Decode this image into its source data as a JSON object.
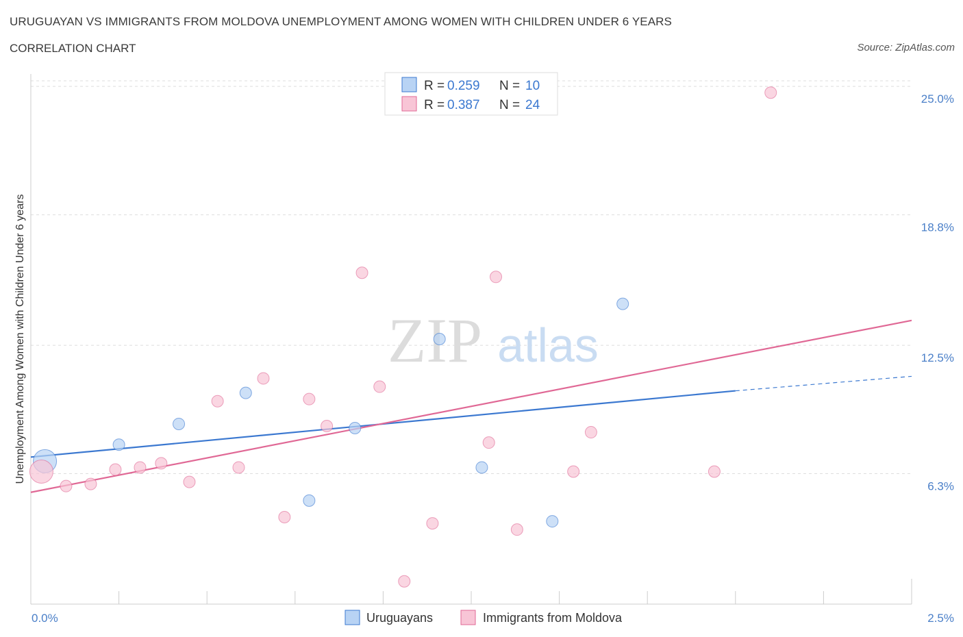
{
  "header": {
    "title": "URUGUAYAN VS IMMIGRANTS FROM MOLDOVA UNEMPLOYMENT AMONG WOMEN WITH CHILDREN UNDER 6 YEARS",
    "subtitle": "CORRELATION CHART",
    "source": "Source: ZipAtlas.com"
  },
  "watermark": {
    "zip": "ZIP",
    "atlas": "atlas"
  },
  "colors": {
    "blue": "#3b78d0",
    "blue_fill": "#b8d3f4",
    "pink": "#e06895",
    "pink_fill": "#f8c5d6",
    "grid": "#dddddd",
    "tick_label": "#4a7fc8"
  },
  "legend": {
    "rows": [
      {
        "r_label": "R = ",
        "r_value": "0.259",
        "n_label": "N = ",
        "n_value": "10",
        "series": "blue"
      },
      {
        "r_label": "R = ",
        "r_value": "0.387",
        "n_label": "N = ",
        "n_value": "24",
        "series": "pink"
      }
    ]
  },
  "chart_data": {
    "type": "scatter",
    "title": "URUGUAYAN VS IMMIGRANTS FROM MOLDOVA UNEMPLOYMENT AMONG WOMEN WITH CHILDREN UNDER 6 YEARS",
    "subtitle": "CORRELATION CHART",
    "xlabel": "",
    "ylabel": "Unemployment Among Women with Children Under 6 years",
    "xlim": [
      0,
      2.5
    ],
    "ylim": [
      0,
      25.6
    ],
    "x_tick_labels": [
      {
        "value": 0,
        "label": "0.0%"
      },
      {
        "value": 2.5,
        "label": "2.5%"
      }
    ],
    "y_tick_labels": [
      {
        "value": 6.3,
        "label": "6.3%"
      },
      {
        "value": 12.5,
        "label": "12.5%"
      },
      {
        "value": 18.8,
        "label": "18.8%"
      },
      {
        "value": 25.0,
        "label": "25.0%"
      }
    ],
    "grid": true,
    "legend_position": "top-center",
    "series": [
      {
        "name": "Uruguayans",
        "color": "#3b78d0",
        "r": 0.259,
        "n": 10,
        "points": [
          {
            "x": 0.04,
            "y": 6.9,
            "size": "large"
          },
          {
            "x": 0.25,
            "y": 7.7
          },
          {
            "x": 0.42,
            "y": 8.7
          },
          {
            "x": 0.61,
            "y": 10.2
          },
          {
            "x": 0.79,
            "y": 5.0
          },
          {
            "x": 0.92,
            "y": 8.5
          },
          {
            "x": 1.16,
            "y": 12.8
          },
          {
            "x": 1.28,
            "y": 6.6
          },
          {
            "x": 1.48,
            "y": 4.0
          },
          {
            "x": 1.68,
            "y": 14.5
          }
        ],
        "trend": {
          "x0": 0.0,
          "y0": 7.1,
          "x1": 2.0,
          "y1": 10.3,
          "dashed_to_x": 2.5,
          "dashed_to_y": 11.0
        }
      },
      {
        "name": "Immigrants from Moldova",
        "color": "#e06895",
        "r": 0.387,
        "n": 24,
        "points": [
          {
            "x": 0.03,
            "y": 6.4,
            "size": "large"
          },
          {
            "x": 0.1,
            "y": 5.7
          },
          {
            "x": 0.17,
            "y": 5.8
          },
          {
            "x": 0.24,
            "y": 6.5
          },
          {
            "x": 0.31,
            "y": 6.6
          },
          {
            "x": 0.37,
            "y": 6.8
          },
          {
            "x": 0.45,
            "y": 5.9
          },
          {
            "x": 0.53,
            "y": 9.8
          },
          {
            "x": 0.59,
            "y": 6.6
          },
          {
            "x": 0.66,
            "y": 10.9
          },
          {
            "x": 0.72,
            "y": 4.2
          },
          {
            "x": 0.79,
            "y": 9.9
          },
          {
            "x": 0.84,
            "y": 8.6
          },
          {
            "x": 0.94,
            "y": 16.0
          },
          {
            "x": 0.99,
            "y": 10.5
          },
          {
            "x": 1.06,
            "y": 1.1
          },
          {
            "x": 1.14,
            "y": 3.9
          },
          {
            "x": 1.3,
            "y": 7.8
          },
          {
            "x": 1.32,
            "y": 15.8
          },
          {
            "x": 1.38,
            "y": 3.6
          },
          {
            "x": 1.54,
            "y": 6.4
          },
          {
            "x": 1.59,
            "y": 8.3
          },
          {
            "x": 1.94,
            "y": 6.4
          },
          {
            "x": 2.1,
            "y": 24.7
          }
        ],
        "trend": {
          "x0": 0.0,
          "y0": 5.4,
          "x1": 2.5,
          "y1": 13.7
        }
      }
    ]
  }
}
